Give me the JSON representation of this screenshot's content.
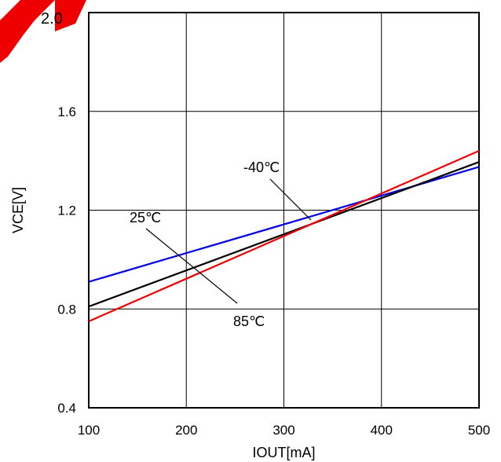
{
  "chart_data": {
    "type": "line",
    "xlabel": "IOUT[mA]",
    "ylabel": "VCE[V]",
    "xlim": [
      100,
      500
    ],
    "ylim": [
      0.4,
      2.0
    ],
    "xticks": [
      "100",
      "200",
      "300",
      "400",
      "500"
    ],
    "yticks": [
      "0.4",
      "0.8",
      "1.2",
      "1.6",
      "2.0"
    ],
    "grid": true,
    "series": [
      {
        "name": "-40℃",
        "color": "#0000e0",
        "x": [
          100,
          500
        ],
        "y": [
          0.91,
          1.375
        ]
      },
      {
        "name": "25℃",
        "color": "#000000",
        "x": [
          100,
          500
        ],
        "y": [
          0.81,
          1.395
        ]
      },
      {
        "name": "85℃",
        "color": "#ee0000",
        "x": [
          100,
          500
        ],
        "y": [
          0.75,
          1.44
        ]
      }
    ],
    "annotations": [
      {
        "text": "-40℃",
        "series": 0
      },
      {
        "text": "25℃",
        "series": 1
      },
      {
        "text": "85℃",
        "series": 2
      }
    ]
  },
  "watermark": {
    "text": "DS",
    "color": "#ee0000"
  }
}
